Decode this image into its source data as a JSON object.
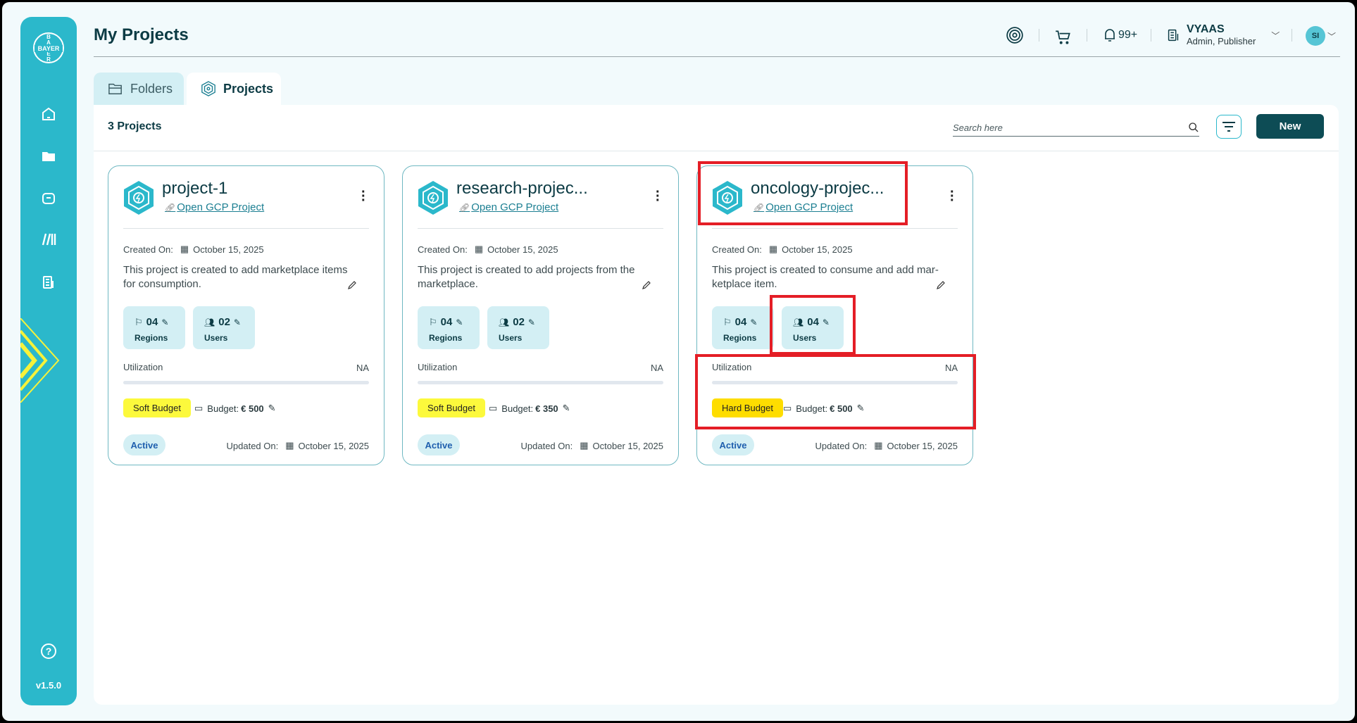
{
  "sidebar": {
    "logo_text": "BAYER",
    "items": [
      {
        "name": "home",
        "icon": "home-icon"
      },
      {
        "name": "folders",
        "icon": "folder-icon"
      },
      {
        "name": "marketplace",
        "icon": "bag-icon"
      },
      {
        "name": "library",
        "icon": "library-icon"
      },
      {
        "name": "organization",
        "icon": "building-icon"
      }
    ],
    "help_icon": "?",
    "version": "v1.5.0",
    "accent": "#2bb8cb",
    "decoration": "#f6f23a"
  },
  "header": {
    "title": "My Projects",
    "notifications": "99+",
    "org_name": "VYAAS",
    "org_roles": "Admin, Publisher",
    "avatar_initials": "SI"
  },
  "tabs": [
    {
      "label": "Folders",
      "active": false
    },
    {
      "label": "Projects",
      "active": true
    }
  ],
  "toolbar": {
    "count": "3 Projects",
    "search_placeholder": "Search here",
    "new_label": "New"
  },
  "labels": {
    "open_link": "Open GCP Project",
    "created": "Created On:",
    "updated": "Updated On:",
    "regions": "Regions",
    "users": "Users",
    "utilization": "Utilization",
    "budget": "Budget:"
  },
  "projects": [
    {
      "name": "project-1",
      "created": "October 15, 2025",
      "description": "This project is created to add marketplace items for consumption.",
      "regions": "04",
      "users": "02",
      "utilization": "NA",
      "budget_type": "Soft Budget",
      "budget_color": "#fcf93c",
      "budget": "€ 500",
      "status": "Active",
      "updated": "October 15, 2025"
    },
    {
      "name": "research-projec...",
      "created": "October 15, 2025",
      "description": "This project is created to add projects from the marketplace.",
      "regions": "04",
      "users": "02",
      "utilization": "NA",
      "budget_type": "Soft Budget",
      "budget_color": "#fcf93c",
      "budget": "€ 350",
      "status": "Active",
      "updated": "October 15, 2025"
    },
    {
      "name": "oncology-projec...",
      "created": "October 15, 2025",
      "description": "This project is created to consume and add mar-ketplace item.",
      "regions": "04",
      "users": "04",
      "utilization": "NA",
      "budget_type": "Hard Budget",
      "budget_color": "#fedd00",
      "budget": "€ 500",
      "status": "Active",
      "updated": "October 15, 2025"
    }
  ],
  "colors": {
    "primary_dark": "#0d4c55",
    "highlight_annotation": "#e41e26"
  }
}
